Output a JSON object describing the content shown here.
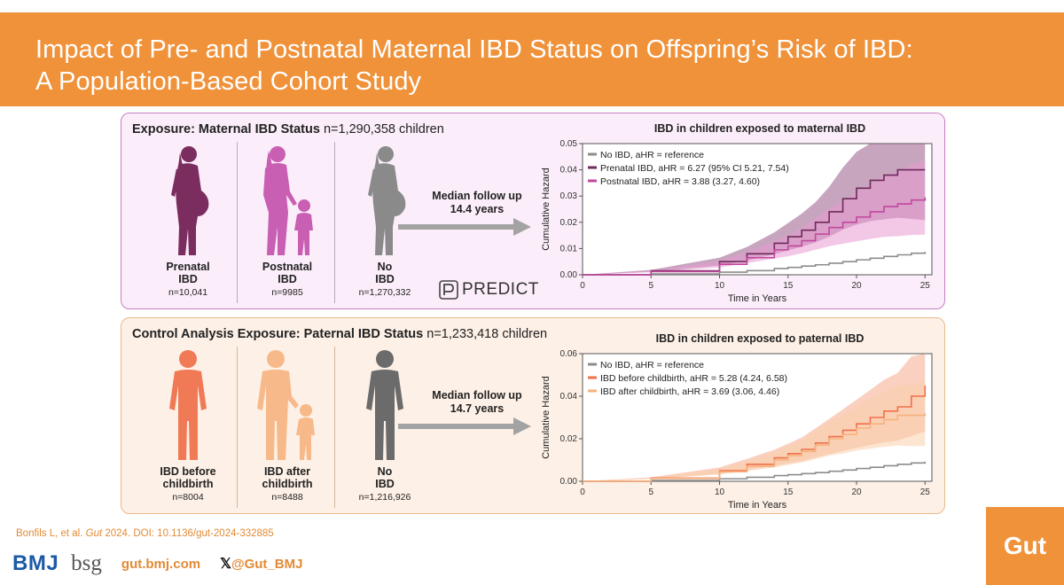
{
  "header": {
    "title_line1": "Impact of  Pre- and Postnatal Maternal IBD Status on Offspring’s Risk of IBD:",
    "title_line2": "A Population-Based Cohort Study"
  },
  "maternal": {
    "exposure_label": "Exposure: Maternal IBD Status",
    "exposure_n": "n=1,290,358 children",
    "groups": [
      {
        "line1": "Prenatal",
        "line2": "IBD",
        "n": "n=10,041",
        "color": "#7a2d5e"
      },
      {
        "line1": "Postnatal",
        "line2": "IBD",
        "n": "n=9985",
        "color": "#c95fb2"
      },
      {
        "line1": "No",
        "line2": "IBD",
        "n": "n=1,270,332",
        "color": "#8a8a8a"
      }
    ],
    "follow_up": "Median follow up 14.4 years",
    "logo_text": "PREDICT"
  },
  "paternal": {
    "exposure_label": "Control Analysis Exposure: Paternal IBD Status",
    "exposure_n": "n=1,233,418 children",
    "groups": [
      {
        "line1": "IBD before",
        "line2": "childbirth",
        "n": "n=8004",
        "color": "#f07a55"
      },
      {
        "line1": "IBD after",
        "line2": "childbirth",
        "n": "n=8488",
        "color": "#f7b98a"
      },
      {
        "line1": "No",
        "line2": "IBD",
        "n": "n=1,216,926",
        "color": "#6b6b6b"
      }
    ],
    "follow_up": "Median follow up 14.7 years"
  },
  "chart_data": [
    {
      "type": "line",
      "title": "IBD in children exposed to maternal IBD",
      "xlabel": "Time in Years",
      "ylabel": "Cumulative Hazard",
      "xlim": [
        0,
        25.5
      ],
      "ylim": [
        0,
        0.05
      ],
      "xticks": [
        "0",
        "5",
        "10",
        "15",
        "20",
        "25"
      ],
      "yticks": [
        "0.00",
        "0.01",
        "0.02",
        "0.03",
        "0.04",
        "0.05"
      ],
      "x": [
        0,
        5,
        10,
        12,
        14,
        15,
        16,
        17,
        18,
        19,
        20,
        21,
        22,
        23,
        24,
        25
      ],
      "legend_position": "top-left",
      "series": [
        {
          "name": "No IBD, aHR = reference",
          "color": "#8c8c8c",
          "values": [
            0,
            0.0003,
            0.001,
            0.0016,
            0.0024,
            0.0028,
            0.0033,
            0.0038,
            0.0044,
            0.005,
            0.0057,
            0.0063,
            0.007,
            0.0076,
            0.0082,
            0.0088
          ],
          "band": false
        },
        {
          "name": "Prenatal IBD, aHR = 6.27 (95% CI 5.21, 7.54)",
          "color": "#6e2a5a",
          "band_color": "#9a5b89",
          "values": [
            0,
            0.0015,
            0.005,
            0.008,
            0.012,
            0.0145,
            0.017,
            0.02,
            0.024,
            0.029,
            0.033,
            0.036,
            0.038,
            0.04,
            0.04,
            0.04
          ],
          "band": true
        },
        {
          "name": "Postnatal IBD, aHR = 3.88 (3.27, 4.60)",
          "color": "#c2479e",
          "band_color": "#e79bd2",
          "values": [
            0,
            0.0012,
            0.004,
            0.0065,
            0.0095,
            0.011,
            0.013,
            0.0155,
            0.018,
            0.02,
            0.022,
            0.024,
            0.026,
            0.027,
            0.0285,
            0.0295
          ],
          "band": true
        }
      ]
    },
    {
      "type": "line",
      "title": "IBD in children exposed to paternal IBD",
      "xlabel": "Time in Years",
      "ylabel": "Cumulative Hazard",
      "xlim": [
        0,
        25.5
      ],
      "ylim": [
        0,
        0.06
      ],
      "xticks": [
        "0",
        "5",
        "10",
        "15",
        "20",
        "25"
      ],
      "yticks": [
        "0.00",
        "0.02",
        "0.04",
        "0.06"
      ],
      "x": [
        0,
        5,
        10,
        12,
        14,
        15,
        16,
        17,
        18,
        19,
        20,
        21,
        22,
        23,
        24,
        25
      ],
      "legend_position": "top-left",
      "series": [
        {
          "name": "No IBD, aHR = reference",
          "color": "#8c8c8c",
          "values": [
            0,
            0.0004,
            0.0012,
            0.0019,
            0.0027,
            0.0031,
            0.0036,
            0.0041,
            0.0047,
            0.0053,
            0.006,
            0.0066,
            0.0073,
            0.008,
            0.0086,
            0.0092
          ],
          "band": false
        },
        {
          "name": "IBD before childbirth, aHR = 5.28 (4.24, 6.58)",
          "color": "#f0704a",
          "band_color": "#f6a98d",
          "values": [
            0,
            0.0015,
            0.005,
            0.008,
            0.011,
            0.013,
            0.015,
            0.018,
            0.021,
            0.024,
            0.027,
            0.03,
            0.033,
            0.035,
            0.04,
            0.045
          ],
          "band": true
        },
        {
          "name": "IBD after childbirth, aHR = 3.69 (3.06, 4.46)",
          "color": "#f5b27e",
          "band_color": "#f9cfac",
          "values": [
            0,
            0.0013,
            0.0045,
            0.007,
            0.01,
            0.012,
            0.014,
            0.017,
            0.02,
            0.022,
            0.025,
            0.027,
            0.029,
            0.031,
            0.031,
            0.032
          ],
          "band": true
        }
      ]
    }
  ],
  "footer": {
    "citation_pre": "Bonfils L, et al. ",
    "citation_journal": "Gut",
    "citation_post": " 2024. DOI: 10.1136/gut-2024-332885",
    "bmj": "BMJ",
    "bsg": "bsg",
    "site": "gut.bmj.com",
    "x_handle": "@Gut_BMJ",
    "gut_logo": "Gut"
  }
}
